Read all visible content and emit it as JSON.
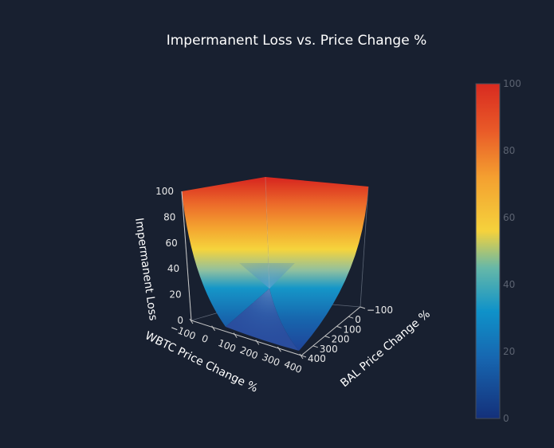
{
  "chart_data": {
    "type": "surface",
    "title": "Impermanent Loss vs. Price Change %",
    "x_axis": {
      "label": "WBTC Price Change %",
      "ticks": [
        "−100",
        "0",
        "100",
        "200",
        "300",
        "400"
      ],
      "range": [
        -100,
        400
      ]
    },
    "y_axis": {
      "label": "BAL Price Change %",
      "ticks": [
        "−100",
        "0",
        "100",
        "200",
        "300",
        "400"
      ],
      "range": [
        -100,
        400
      ]
    },
    "z_axis": {
      "label": "Impermanent Loss",
      "ticks": [
        "0",
        "20",
        "40",
        "60",
        "80",
        "100"
      ],
      "range": [
        0,
        100
      ]
    },
    "colorbar": {
      "ticks": [
        "0",
        "20",
        "40",
        "60",
        "80",
        "100"
      ],
      "range": [
        0,
        100
      ]
    },
    "colorscale": [
      "#14307a",
      "#1766b0",
      "#0f92c9",
      "#66b8a8",
      "#f5d23c",
      "#f4a030",
      "#e95a28",
      "#d82a20"
    ],
    "surface_samples": [
      {
        "x": -100,
        "y": -100,
        "z": 100
      },
      {
        "x": -100,
        "y": 400,
        "z": 100
      },
      {
        "x": 400,
        "y": -100,
        "z": 100
      },
      {
        "x": 0,
        "y": 0,
        "z": 0
      },
      {
        "x": 400,
        "y": 400,
        "z": 0
      }
    ]
  }
}
